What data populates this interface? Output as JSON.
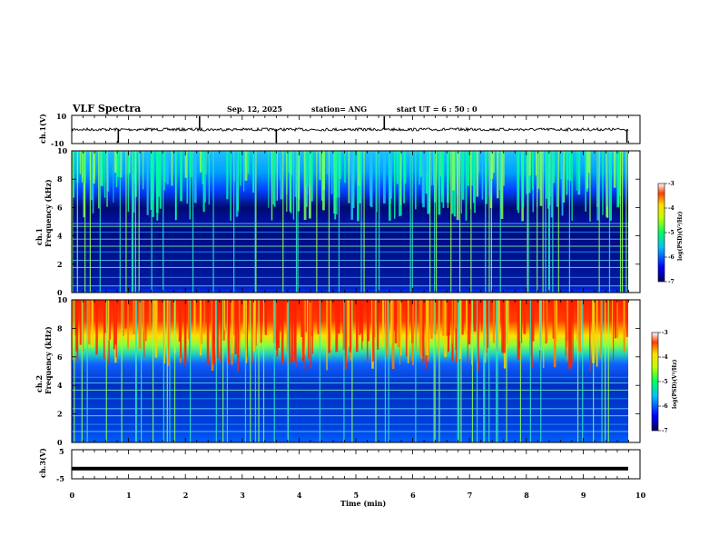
{
  "header": {
    "title": "VLF Spectra",
    "date": "Sep. 12, 2025",
    "station": "station= ANG",
    "start": "start  UT  =   6  : 50 : 0"
  },
  "chart_data": [
    {
      "type": "line",
      "id": "ch1-voltage",
      "ylabel": "ch.1(V)",
      "ylim": [
        -10,
        10
      ],
      "tick_labels": [
        "10",
        "-10"
      ],
      "xlim": [
        0,
        10
      ],
      "baseline": 0,
      "spike_times": [
        0.82,
        2.25,
        3.6,
        5.5,
        9.77
      ]
    },
    {
      "type": "heatmap",
      "id": "ch1-spectrogram",
      "ylabel": "ch.1  Frequency (kHz)",
      "ylabel_line1": "ch.1",
      "ylabel_line2": "Frequency (kHz)",
      "ylim": [
        0,
        10
      ],
      "ytick_labels": [
        "0",
        "2",
        "4",
        "6",
        "8",
        "10"
      ],
      "xlim": [
        0,
        10
      ],
      "colorbar": {
        "label": "log(PSD)(V²/Hz)",
        "range": [
          -7,
          -3
        ],
        "ticks": [
          "-3",
          "-4",
          "-5",
          "-6",
          "-7"
        ]
      },
      "band_kHz": [
        [
          0,
          0.5,
          "low"
        ],
        [
          0.5,
          5,
          "low"
        ],
        [
          5,
          7,
          "low"
        ],
        [
          7,
          10,
          "mid"
        ]
      ]
    },
    {
      "type": "heatmap",
      "id": "ch2-spectrogram",
      "ylabel": "ch.2  Frequency (kHz)",
      "ylabel_line1": "ch.2",
      "ylabel_line2": "Frequency (kHz)",
      "ylim": [
        0,
        10
      ],
      "ytick_labels": [
        "0",
        "2",
        "4",
        "6",
        "8",
        "10"
      ],
      "xlim": [
        0,
        10
      ],
      "colorbar": {
        "label": "log(PSD)(V²/Hz)",
        "range": [
          -7,
          -3
        ],
        "ticks": [
          "-3",
          "-4",
          "-5",
          "-6",
          "-7"
        ]
      },
      "band_kHz": [
        [
          0,
          5,
          "low"
        ],
        [
          5,
          7,
          "mid"
        ],
        [
          7,
          10,
          "high"
        ]
      ]
    },
    {
      "type": "line",
      "id": "ch3-voltage",
      "ylabel": "ch.3(V)",
      "ylim": [
        -5,
        5
      ],
      "tick_labels": [
        "5",
        "-5"
      ],
      "xlim": [
        0,
        10
      ],
      "value": -1.5,
      "xlabel": "Time  (min)",
      "xtick_labels": [
        "0",
        "1",
        "2",
        "3",
        "4",
        "5",
        "6",
        "7",
        "8",
        "9",
        "10"
      ]
    }
  ],
  "colors": {
    "low": "#000080",
    "mid_low": "#0040ff",
    "mid": "#20e0c0",
    "high": "#ff3000",
    "accent_yellow": "#ffe000"
  }
}
